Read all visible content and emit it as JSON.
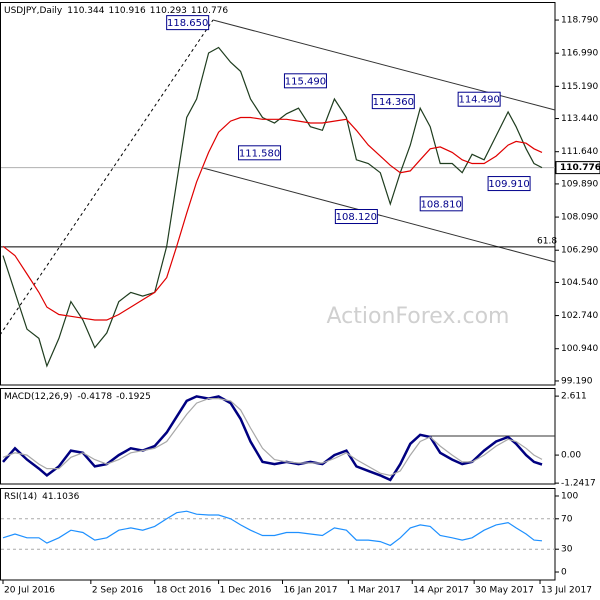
{
  "chart_data": [
    {
      "type": "line",
      "title": "USDJPY,Daily",
      "header_values": [
        110.344,
        110.916,
        110.293,
        110.776
      ],
      "x": [
        0,
        6,
        12,
        18,
        22,
        28,
        34,
        40,
        46,
        52,
        58,
        64,
        70,
        76,
        82,
        87,
        92,
        97,
        103,
        108,
        114,
        119,
        124,
        130,
        136,
        142,
        148,
        154,
        160,
        166,
        172,
        177,
        183,
        189,
        194,
        199,
        204,
        209,
        214,
        219,
        225,
        230,
        235,
        241,
        247,
        253,
        257,
        262,
        266,
        270
      ],
      "series": [
        {
          "color": "#1f3d1f",
          "values": [
            106.0,
            104.0,
            102.0,
            101.5,
            100.0,
            101.5,
            103.5,
            102.5,
            101.0,
            101.8,
            103.5,
            104.0,
            103.8,
            104.0,
            106.5,
            110.0,
            113.5,
            114.5,
            117.0,
            117.3,
            116.5,
            116.0,
            114.5,
            113.5,
            113.2,
            113.7,
            114.0,
            113.0,
            112.8,
            114.5,
            113.5,
            111.2,
            111.0,
            110.5,
            108.8,
            110.5,
            112.0,
            114.0,
            113.0,
            111.0,
            111.0,
            110.5,
            111.5,
            111.2,
            112.5,
            113.8,
            113.0,
            111.8,
            111.0,
            110.776
          ]
        },
        {
          "color": "#e00000",
          "values": [
            106.5,
            106.0,
            105.0,
            104.0,
            103.2,
            102.8,
            102.7,
            102.6,
            102.5,
            102.5,
            102.8,
            103.2,
            103.6,
            104.0,
            104.8,
            106.5,
            108.3,
            110.0,
            111.6,
            112.7,
            113.3,
            113.5,
            113.5,
            113.4,
            113.4,
            113.4,
            113.3,
            113.2,
            113.2,
            113.3,
            113.4,
            112.8,
            112.0,
            111.4,
            110.9,
            110.5,
            110.6,
            111.2,
            111.8,
            111.9,
            111.6,
            111.2,
            111.0,
            111.0,
            111.4,
            112.0,
            112.2,
            112.1,
            111.8,
            111.6
          ]
        }
      ],
      "xlim": [
        -1,
        276.5
      ],
      "xticks": [
        {
          "value": 0,
          "label": "20 Jul 2016"
        },
        {
          "value": 44,
          "label": "2 Sep 2016"
        },
        {
          "value": 76,
          "label": "18 Oct 2016"
        },
        {
          "value": 108,
          "label": "1 Dec 2016"
        },
        {
          "value": 140,
          "label": "16 Jan 2017"
        },
        {
          "value": 173,
          "label": "1 Mar 2017"
        },
        {
          "value": 205,
          "label": "14 Apr 2017"
        },
        {
          "value": 236,
          "label": "30 May 2017"
        },
        {
          "value": 269,
          "label": "13 Jul 2017"
        }
      ],
      "ylim": [
        98.97,
        119.77
      ],
      "yticks": [
        {
          "value": 118.79,
          "label": "118.790"
        },
        {
          "value": 116.99,
          "label": "116.990"
        },
        {
          "value": 115.19,
          "label": "115.190"
        },
        {
          "value": 113.44,
          "label": "113.440"
        },
        {
          "value": 111.64,
          "label": "111.640"
        },
        {
          "value": 109.89,
          "label": "109.890"
        },
        {
          "value": 108.09,
          "label": "108.090"
        },
        {
          "value": 106.29,
          "label": "106.290"
        },
        {
          "value": 104.54,
          "label": "104.540"
        },
        {
          "value": 102.74,
          "label": "102.740"
        },
        {
          "value": 100.94,
          "label": "100.940"
        },
        {
          "value": 99.19,
          "label": "99.190"
        }
      ],
      "current_price": 110.776,
      "fib": {
        "level": 61.8,
        "price": 106.47
      },
      "annotations": [
        {
          "x": 92.5,
          "value": 118.65,
          "label": "118.650"
        },
        {
          "x": 151.5,
          "value": 115.49,
          "label": "115.490"
        },
        {
          "x": 195.5,
          "value": 114.36,
          "label": "114.360"
        },
        {
          "x": 238.5,
          "value": 114.49,
          "label": "114.490"
        },
        {
          "x": 128.5,
          "value": 111.58,
          "label": "111.580"
        },
        {
          "x": 253.5,
          "value": 109.91,
          "label": "109.910"
        },
        {
          "x": 177,
          "value": 108.12,
          "label": "108.120"
        },
        {
          "x": 219.5,
          "value": 108.81,
          "label": "108.810"
        }
      ],
      "watermark": "ActionForex.com"
    },
    {
      "type": "line",
      "title": "MACD(12,26,9)",
      "header_values": [
        -0.4178,
        -0.1925
      ],
      "series": [
        {
          "color": "#000080",
          "values": [
            -0.3,
            0.3,
            -0.2,
            -0.6,
            -0.9,
            -0.5,
            0.2,
            0.1,
            -0.5,
            -0.4,
            0.0,
            0.3,
            0.2,
            0.4,
            1.0,
            1.7,
            2.4,
            2.6,
            2.5,
            2.6,
            2.3,
            1.6,
            0.6,
            -0.3,
            -0.4,
            -0.3,
            -0.4,
            -0.3,
            -0.4,
            0.0,
            0.2,
            -0.5,
            -0.7,
            -0.9,
            -1.1,
            -0.4,
            0.5,
            0.9,
            0.8,
            0.1,
            -0.2,
            -0.4,
            -0.3,
            0.2,
            0.6,
            0.8,
            0.5,
            0.0,
            -0.3,
            -0.4178
          ]
        },
        {
          "color": "#a8a8a8",
          "values": [
            -0.1,
            0.1,
            0.0,
            -0.4,
            -0.6,
            -0.6,
            -0.1,
            0.1,
            -0.2,
            -0.4,
            -0.2,
            0.1,
            0.2,
            0.3,
            0.6,
            1.2,
            1.8,
            2.3,
            2.5,
            2.5,
            2.4,
            2.0,
            1.2,
            0.3,
            -0.2,
            -0.3,
            -0.35,
            -0.35,
            -0.35,
            -0.15,
            0.1,
            -0.2,
            -0.5,
            -0.8,
            -0.9,
            -0.7,
            0.0,
            0.6,
            0.8,
            0.4,
            0.0,
            -0.3,
            -0.3,
            0.0,
            0.4,
            0.7,
            0.6,
            0.3,
            0.0,
            -0.1925
          ]
        }
      ],
      "ylim": [
        -1.28,
        2.97
      ],
      "yticks": [
        2.611,
        {
          "value": 0,
          "label": "0.00"
        },
        -1.2417
      ]
    },
    {
      "type": "line",
      "title": "RSI(14)",
      "header_values": [
        41.1036
      ],
      "series": [
        {
          "color": "#1e90ff",
          "values": [
            45,
            50,
            45,
            45,
            38,
            45,
            55,
            52,
            42,
            45,
            55,
            58,
            55,
            60,
            70,
            78,
            80,
            76,
            75,
            75,
            70,
            62,
            55,
            48,
            48,
            52,
            52,
            50,
            48,
            58,
            55,
            42,
            42,
            40,
            35,
            45,
            58,
            62,
            60,
            48,
            45,
            42,
            45,
            55,
            62,
            65,
            58,
            50,
            42,
            41.1036
          ]
        }
      ],
      "ylim": [
        -10.5,
        110.5
      ],
      "yticks": [
        100,
        70,
        30,
        0
      ],
      "levels": [
        70,
        30
      ]
    }
  ]
}
